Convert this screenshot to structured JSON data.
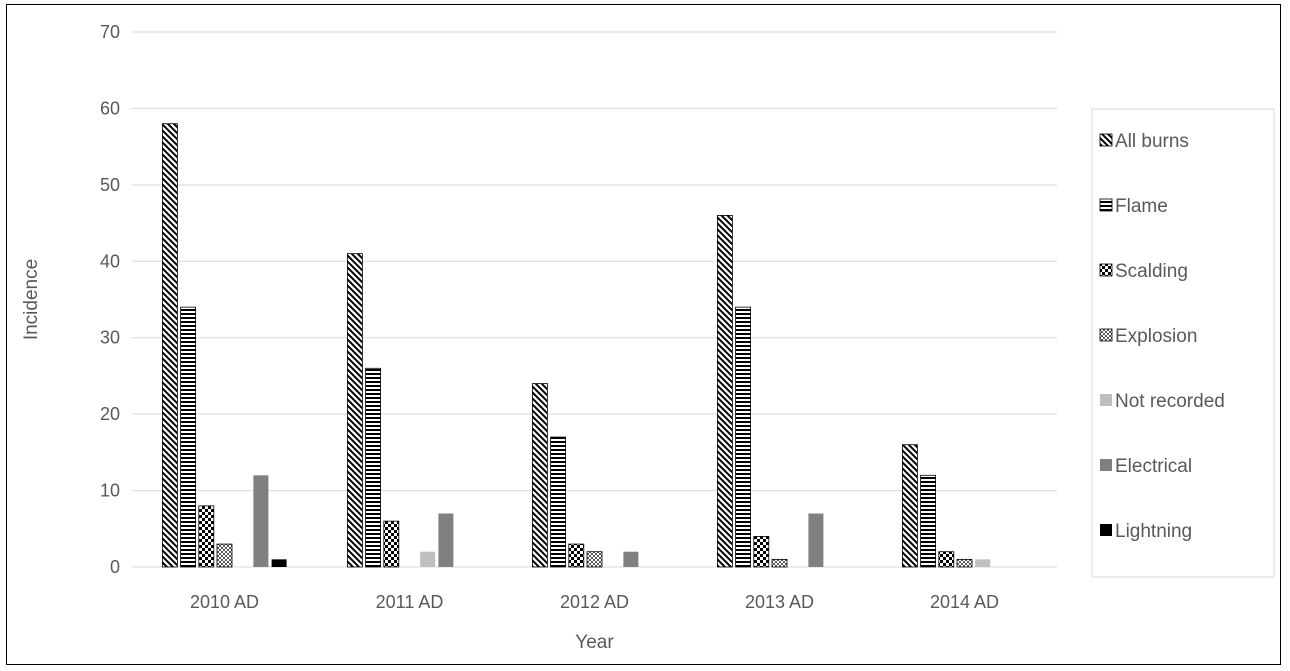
{
  "chart_data": {
    "type": "bar",
    "title": "",
    "xlabel": "Year",
    "ylabel": "Incidence",
    "ylim": [
      0,
      70
    ],
    "yticks": [
      0,
      10,
      20,
      30,
      40,
      50,
      60,
      70
    ],
    "grid": true,
    "legend_position": "right",
    "categories": [
      "2010 AD",
      "2011 AD",
      "2012 AD",
      "2013 AD",
      "2014 AD"
    ],
    "series": [
      {
        "name": "All burns",
        "pattern": "diagonal",
        "color": "#000000",
        "values": [
          58,
          41,
          24,
          46,
          16
        ]
      },
      {
        "name": "Flame",
        "pattern": "horizontal",
        "color": "#000000",
        "values": [
          34,
          26,
          17,
          34,
          12
        ]
      },
      {
        "name": "Scalding",
        "pattern": "checker",
        "color": "#000000",
        "values": [
          8,
          6,
          3,
          4,
          2
        ]
      },
      {
        "name": "Explosion",
        "pattern": "dots",
        "color": "#595959",
        "values": [
          3,
          0,
          2,
          1,
          1
        ]
      },
      {
        "name": "Not recorded",
        "pattern": "solid",
        "color": "#bfbfbf",
        "values": [
          0,
          2,
          0,
          0,
          1
        ]
      },
      {
        "name": "Electrical",
        "pattern": "solid",
        "color": "#808080",
        "values": [
          12,
          7,
          2,
          7,
          0
        ]
      },
      {
        "name": "Lightning",
        "pattern": "solid",
        "color": "#000000",
        "values": [
          1,
          0,
          0,
          0,
          0
        ]
      }
    ]
  }
}
